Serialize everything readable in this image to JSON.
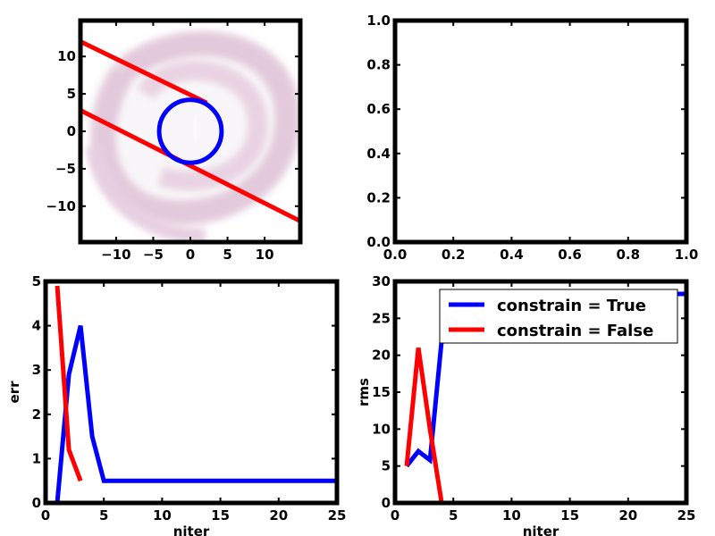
{
  "chart_data": [
    {
      "id": "top-left",
      "type": "scatter",
      "title": "",
      "xlabel": "",
      "ylabel": "",
      "xlim": [
        -14.8,
        14.8
      ],
      "ylim": [
        -14.8,
        14.8
      ],
      "xticks": [
        -10,
        -5,
        0,
        5,
        10
      ],
      "xtick_labels": [
        "−10",
        "−5",
        "0",
        "5",
        "10"
      ],
      "yticks": [
        -10,
        -5,
        0,
        5,
        10
      ],
      "ytick_labels": [
        "−10",
        "−5",
        "0",
        "5",
        "10"
      ],
      "background": "faint pink swirl density of sample points",
      "circle": {
        "center": [
          0,
          0
        ],
        "radius": 4.2,
        "color": "#0000ff"
      },
      "lines": [
        {
          "color": "#ff0000",
          "points": [
            [
              -14.8,
              12.0
            ],
            [
              2.2,
              3.8
            ]
          ]
        },
        {
          "color": "#ff0000",
          "points": [
            [
              -14.8,
              2.8
            ],
            [
              14.8,
              -12.0
            ]
          ]
        }
      ]
    },
    {
      "id": "top-right",
      "type": "line",
      "title": "",
      "xlabel": "",
      "ylabel": "",
      "xlim": [
        0,
        1
      ],
      "ylim": [
        0,
        1
      ],
      "xticks": [
        0,
        0.2,
        0.4,
        0.6,
        0.8,
        1.0
      ],
      "xtick_labels": [
        "0.0",
        "0.2",
        "0.4",
        "0.6",
        "0.8",
        "1.0"
      ],
      "yticks": [
        0,
        0.2,
        0.4,
        0.6,
        0.8,
        1.0
      ],
      "ytick_labels": [
        "0.0",
        "0.2",
        "0.4",
        "0.6",
        "0.8",
        "1.0"
      ],
      "series": []
    },
    {
      "id": "bottom-left",
      "type": "line",
      "title": "",
      "xlabel": "niter",
      "ylabel": "err",
      "xlim": [
        0,
        25
      ],
      "ylim": [
        0,
        5
      ],
      "xticks": [
        0,
        5,
        10,
        15,
        20,
        25
      ],
      "xtick_labels": [
        "0",
        "5",
        "10",
        "15",
        "20",
        "25"
      ],
      "yticks": [
        0,
        1,
        2,
        3,
        4,
        5
      ],
      "ytick_labels": [
        "0",
        "1",
        "2",
        "3",
        "4",
        "5"
      ],
      "series": [
        {
          "color": "#0000ff",
          "x": [
            1,
            2,
            3,
            4,
            5,
            6,
            7,
            8,
            9,
            10,
            11,
            12,
            13,
            14,
            15,
            16,
            17,
            18,
            19,
            20,
            21,
            22,
            23,
            24,
            25
          ],
          "y": [
            0,
            2.9,
            4.0,
            1.5,
            0.5,
            0.5,
            0.5,
            0.5,
            0.5,
            0.5,
            0.5,
            0.5,
            0.5,
            0.5,
            0.5,
            0.5,
            0.5,
            0.5,
            0.5,
            0.5,
            0.5,
            0.5,
            0.5,
            0.5,
            0.5
          ]
        },
        {
          "color": "#ff0000",
          "x": [
            1,
            2,
            3
          ],
          "y": [
            4.9,
            1.2,
            0.5
          ]
        }
      ]
    },
    {
      "id": "bottom-right",
      "type": "line",
      "title": "",
      "xlabel": "niter",
      "ylabel": "rms",
      "xlim": [
        0,
        25
      ],
      "ylim": [
        0,
        30
      ],
      "xticks": [
        0,
        5,
        10,
        15,
        20,
        25
      ],
      "xtick_labels": [
        "0",
        "5",
        "10",
        "15",
        "20",
        "25"
      ],
      "yticks": [
        0,
        5,
        10,
        15,
        20,
        25,
        30
      ],
      "ytick_labels": [
        "0",
        "5",
        "10",
        "15",
        "20",
        "25",
        "30"
      ],
      "legend": "top-right",
      "series": [
        {
          "name": "constrain = True",
          "color": "#0000ff",
          "x": [
            1,
            2,
            3,
            4,
            5,
            6,
            7,
            8,
            9,
            10,
            11,
            12,
            13,
            14,
            15,
            16,
            17,
            18,
            19,
            20,
            21,
            22,
            23,
            24,
            25
          ],
          "y": [
            5,
            7,
            5.8,
            22,
            28.3,
            28.3,
            28.3,
            28.3,
            28.3,
            28.3,
            28.3,
            28.3,
            28.3,
            28.3,
            28.3,
            28.3,
            28.3,
            28.3,
            28.3,
            28.3,
            28.3,
            28.3,
            28.3,
            28.3,
            28.3
          ]
        },
        {
          "name": "constrain = False",
          "color": "#ff0000",
          "x": [
            1,
            2,
            3,
            4
          ],
          "y": [
            5,
            21,
            10,
            0
          ]
        }
      ]
    }
  ]
}
